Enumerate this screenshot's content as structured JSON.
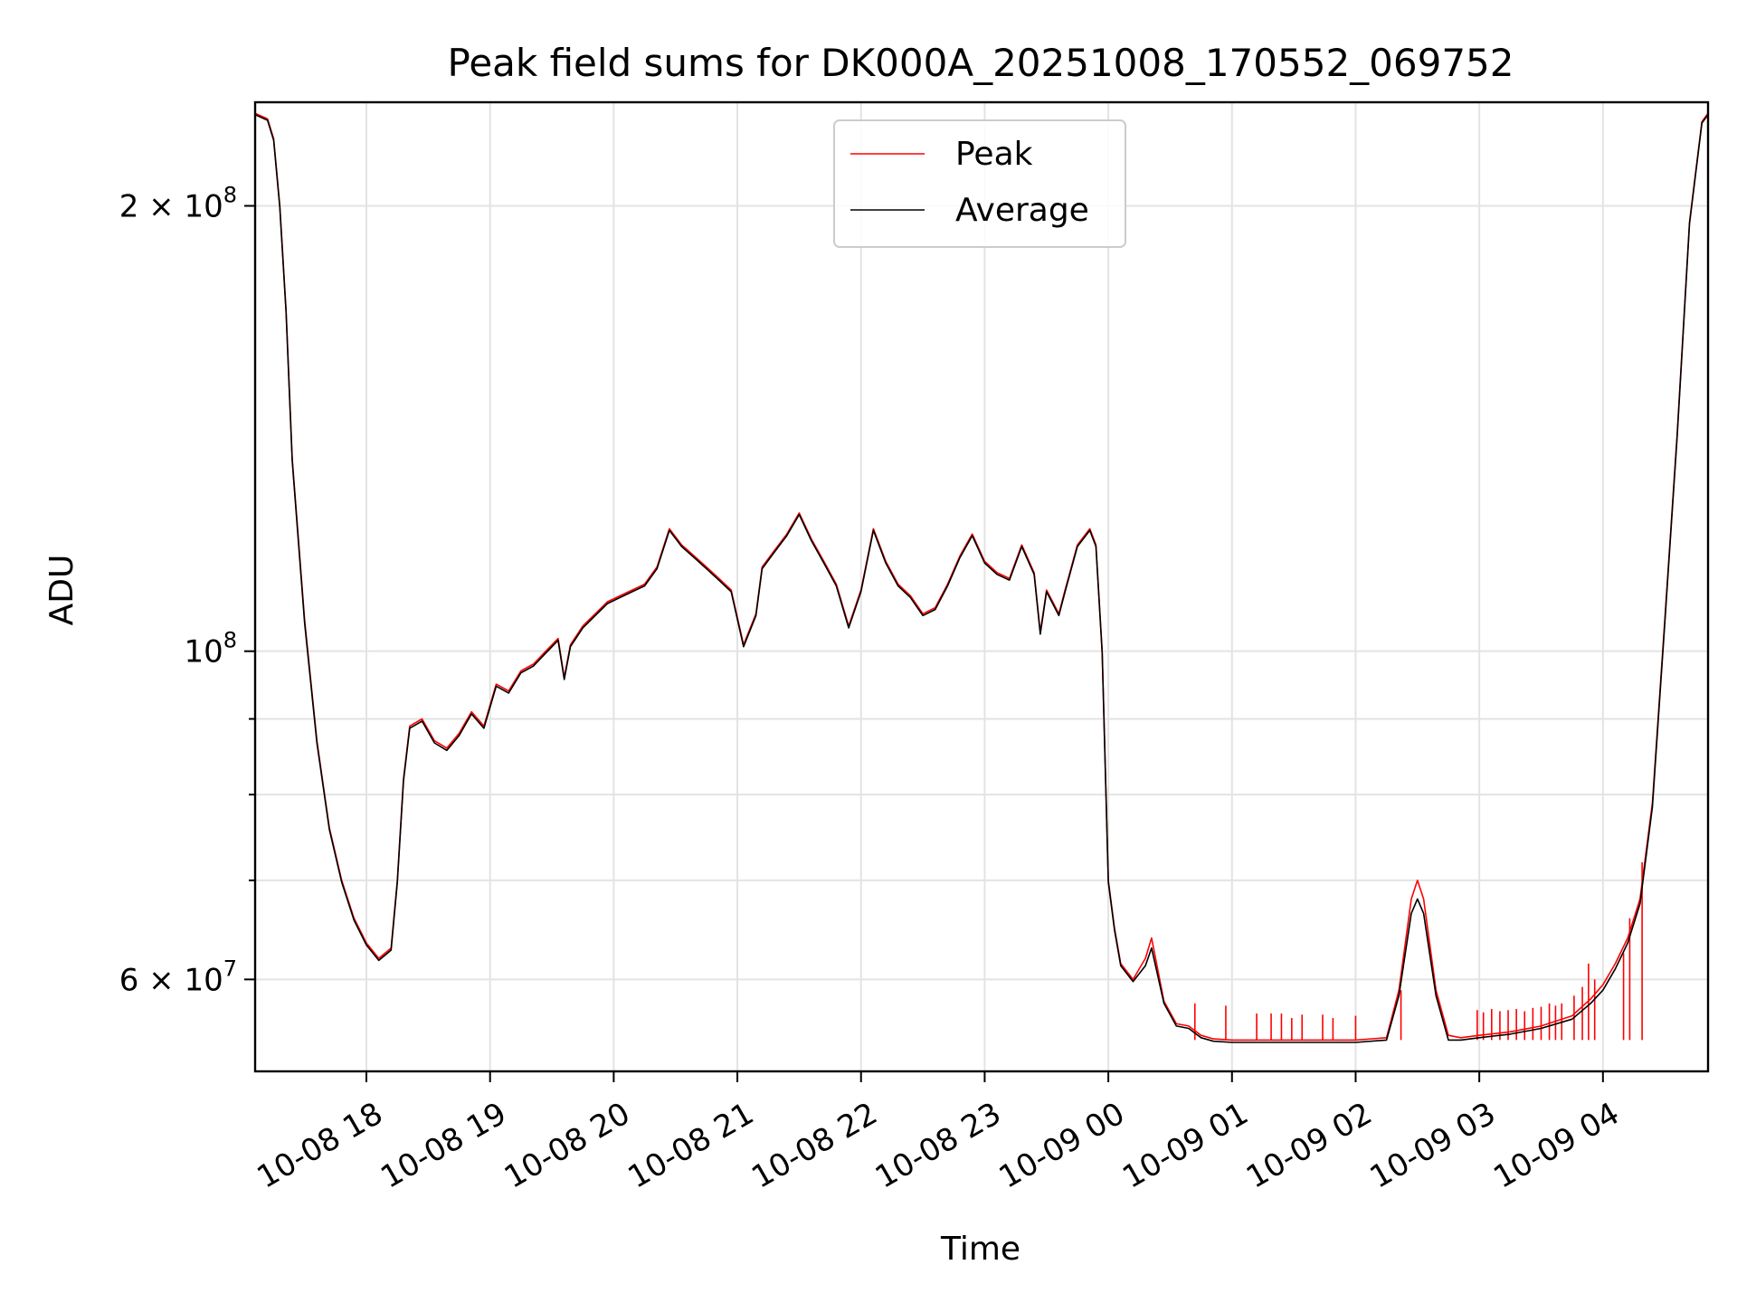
{
  "chart_data": {
    "type": "line",
    "title": "Peak field sums for DK000A_20251008_170552_069752",
    "xlabel": "Time",
    "ylabel": "ADU",
    "yscale": "log",
    "ylim": [
      52000000,
      235000000
    ],
    "xlim": [
      "2025-10-08 17:06",
      "2025-10-09 04:51"
    ],
    "grid": true,
    "legend_position": "upper center",
    "colors": {
      "peak": "#ff0000",
      "average": "#000000"
    },
    "x_ticks": [
      {
        "value": "2025-10-08 18:00",
        "label": "10-08 18"
      },
      {
        "value": "2025-10-08 19:00",
        "label": "10-08 19"
      },
      {
        "value": "2025-10-08 20:00",
        "label": "10-08 20"
      },
      {
        "value": "2025-10-08 21:00",
        "label": "10-08 21"
      },
      {
        "value": "2025-10-08 22:00",
        "label": "10-08 22"
      },
      {
        "value": "2025-10-08 23:00",
        "label": "10-08 23"
      },
      {
        "value": "2025-10-09 00:00",
        "label": "10-09 00"
      },
      {
        "value": "2025-10-09 01:00",
        "label": "10-09 01"
      },
      {
        "value": "2025-10-09 02:00",
        "label": "10-09 02"
      },
      {
        "value": "2025-10-09 03:00",
        "label": "10-09 03"
      },
      {
        "value": "2025-10-09 04:00",
        "label": "10-09 04"
      }
    ],
    "y_major_ticks": [
      {
        "value": 60000000,
        "mantissa": "6",
        "base": "10",
        "exp": "7"
      },
      {
        "value": 100000000,
        "mantissa": "",
        "base": "10",
        "exp": "8"
      },
      {
        "value": 200000000,
        "mantissa": "2",
        "base": "10",
        "exp": "8"
      }
    ],
    "y_minor_ticks": [
      70000000,
      80000000,
      90000000
    ],
    "series": [
      {
        "name": "Peak",
        "color": "#ff0000",
        "x": [
          "2025-10-08 17:06",
          "2025-10-08 17:12",
          "2025-10-08 17:15",
          "2025-10-08 17:18",
          "2025-10-08 17:21",
          "2025-10-08 17:24",
          "2025-10-08 17:30",
          "2025-10-08 17:36",
          "2025-10-08 17:42",
          "2025-10-08 17:48",
          "2025-10-08 17:54",
          "2025-10-08 18:00",
          "2025-10-08 18:06",
          "2025-10-08 18:12",
          "2025-10-08 18:15",
          "2025-10-08 18:18",
          "2025-10-08 18:21",
          "2025-10-08 18:27",
          "2025-10-08 18:33",
          "2025-10-08 18:39",
          "2025-10-08 18:45",
          "2025-10-08 18:51",
          "2025-10-08 18:57",
          "2025-10-08 19:03",
          "2025-10-08 19:09",
          "2025-10-08 19:15",
          "2025-10-08 19:21",
          "2025-10-08 19:27",
          "2025-10-08 19:33",
          "2025-10-08 19:36",
          "2025-10-08 19:39",
          "2025-10-08 19:45",
          "2025-10-08 19:51",
          "2025-10-08 19:57",
          "2025-10-08 20:03",
          "2025-10-08 20:09",
          "2025-10-08 20:15",
          "2025-10-08 20:21",
          "2025-10-08 20:27",
          "2025-10-08 20:33",
          "2025-10-08 20:39",
          "2025-10-08 20:45",
          "2025-10-08 20:51",
          "2025-10-08 20:57",
          "2025-10-08 21:03",
          "2025-10-08 21:09",
          "2025-10-08 21:12",
          "2025-10-08 21:18",
          "2025-10-08 21:24",
          "2025-10-08 21:30",
          "2025-10-08 21:36",
          "2025-10-08 21:42",
          "2025-10-08 21:48",
          "2025-10-08 21:54",
          "2025-10-08 22:00",
          "2025-10-08 22:06",
          "2025-10-08 22:12",
          "2025-10-08 22:18",
          "2025-10-08 22:24",
          "2025-10-08 22:30",
          "2025-10-08 22:36",
          "2025-10-08 22:42",
          "2025-10-08 22:48",
          "2025-10-08 22:54",
          "2025-10-08 23:00",
          "2025-10-08 23:06",
          "2025-10-08 23:12",
          "2025-10-08 23:18",
          "2025-10-08 23:24",
          "2025-10-08 23:27",
          "2025-10-08 23:30",
          "2025-10-08 23:36",
          "2025-10-08 23:39",
          "2025-10-08 23:45",
          "2025-10-08 23:51",
          "2025-10-08 23:54",
          "2025-10-08 23:57",
          "2025-10-09 00:00",
          "2025-10-09 00:03",
          "2025-10-09 00:06",
          "2025-10-09 00:12",
          "2025-10-09 00:18",
          "2025-10-09 00:21",
          "2025-10-09 00:27",
          "2025-10-09 00:33",
          "2025-10-09 00:39",
          "2025-10-09 00:45",
          "2025-10-09 00:51",
          "2025-10-09 01:00",
          "2025-10-09 01:15",
          "2025-10-09 01:30",
          "2025-10-09 01:45",
          "2025-10-09 02:00",
          "2025-10-09 02:15",
          "2025-10-09 02:21",
          "2025-10-09 02:27",
          "2025-10-09 02:30",
          "2025-10-09 02:33",
          "2025-10-09 02:39",
          "2025-10-09 02:45",
          "2025-10-09 02:51",
          "2025-10-09 03:00",
          "2025-10-09 03:15",
          "2025-10-09 03:30",
          "2025-10-09 03:45",
          "2025-10-09 03:54",
          "2025-10-09 04:00",
          "2025-10-09 04:06",
          "2025-10-09 04:12",
          "2025-10-09 04:18",
          "2025-10-09 04:24",
          "2025-10-09 04:30",
          "2025-10-09 04:36",
          "2025-10-09 04:42",
          "2025-10-09 04:48",
          "2025-10-09 04:51"
        ],
        "values": [
          231000000,
          229000000,
          222000000,
          200000000,
          170000000,
          135000000,
          105000000,
          87000000,
          76000000,
          70000000,
          66000000,
          63500000,
          62000000,
          63000000,
          70000000,
          82000000,
          89000000,
          90000000,
          87000000,
          86000000,
          88000000,
          91000000,
          89000000,
          95000000,
          94000000,
          97000000,
          98000000,
          100000000,
          102000000,
          96000000,
          101000000,
          104000000,
          106000000,
          108000000,
          109000000,
          110000000,
          111000000,
          114000000,
          121000000,
          118000000,
          116000000,
          114000000,
          112000000,
          110000000,
          101000000,
          106000000,
          114000000,
          117000000,
          120000000,
          124000000,
          119000000,
          115000000,
          111000000,
          104000000,
          110000000,
          121000000,
          115000000,
          111000000,
          109000000,
          106000000,
          107000000,
          111000000,
          116000000,
          120000000,
          115000000,
          113000000,
          112000000,
          118000000,
          113000000,
          103000000,
          110000000,
          106000000,
          110000000,
          118000000,
          121000000,
          118000000,
          100000000,
          70000000,
          65000000,
          61500000,
          60000000,
          62000000,
          64000000,
          58000000,
          56000000,
          55800000,
          55000000,
          54700000,
          54600000,
          54600000,
          54600000,
          54600000,
          54600000,
          54800000,
          59000000,
          68000000,
          70000000,
          68000000,
          59000000,
          55000000,
          54800000,
          55000000,
          55300000,
          55800000,
          56700000,
          58200000,
          59500000,
          61500000,
          64000000,
          68000000,
          79000000,
          105000000,
          140000000,
          195000000,
          228000000,
          231000000
        ],
        "spikes": [
          {
            "x": "2025-10-09 00:42",
            "value": 57800000
          },
          {
            "x": "2025-10-09 00:57",
            "value": 57600000
          },
          {
            "x": "2025-10-09 01:12",
            "value": 56900000
          },
          {
            "x": "2025-10-09 01:19",
            "value": 56900000
          },
          {
            "x": "2025-10-09 01:24",
            "value": 56900000
          },
          {
            "x": "2025-10-09 01:29",
            "value": 56500000
          },
          {
            "x": "2025-10-09 01:34",
            "value": 56800000
          },
          {
            "x": "2025-10-09 01:44",
            "value": 56800000
          },
          {
            "x": "2025-10-09 01:49",
            "value": 56500000
          },
          {
            "x": "2025-10-09 02:00",
            "value": 56700000
          },
          {
            "x": "2025-10-09 02:22",
            "value": 59000000
          },
          {
            "x": "2025-10-09 02:59",
            "value": 57200000
          },
          {
            "x": "2025-10-09 03:02",
            "value": 57000000
          },
          {
            "x": "2025-10-09 03:06",
            "value": 57300000
          },
          {
            "x": "2025-10-09 03:10",
            "value": 57100000
          },
          {
            "x": "2025-10-09 03:14",
            "value": 57200000
          },
          {
            "x": "2025-10-09 03:18",
            "value": 57300000
          },
          {
            "x": "2025-10-09 03:22",
            "value": 57100000
          },
          {
            "x": "2025-10-09 03:26",
            "value": 57400000
          },
          {
            "x": "2025-10-09 03:30",
            "value": 57500000
          },
          {
            "x": "2025-10-09 03:34",
            "value": 57800000
          },
          {
            "x": "2025-10-09 03:37",
            "value": 57600000
          },
          {
            "x": "2025-10-09 03:40",
            "value": 57800000
          },
          {
            "x": "2025-10-09 03:46",
            "value": 58500000
          },
          {
            "x": "2025-10-09 03:50",
            "value": 59300000
          },
          {
            "x": "2025-10-09 03:53",
            "value": 61500000
          },
          {
            "x": "2025-10-09 03:56",
            "value": 60000000
          },
          {
            "x": "2025-10-09 04:10",
            "value": 62500000
          },
          {
            "x": "2025-10-09 04:13",
            "value": 66000000
          },
          {
            "x": "2025-10-09 04:19",
            "value": 72000000
          }
        ]
      },
      {
        "name": "Average",
        "color": "#000000",
        "x": [
          "2025-10-08 17:06",
          "2025-10-08 17:12",
          "2025-10-08 17:15",
          "2025-10-08 17:18",
          "2025-10-08 17:21",
          "2025-10-08 17:24",
          "2025-10-08 17:30",
          "2025-10-08 17:36",
          "2025-10-08 17:42",
          "2025-10-08 17:48",
          "2025-10-08 17:54",
          "2025-10-08 18:00",
          "2025-10-08 18:06",
          "2025-10-08 18:12",
          "2025-10-08 18:15",
          "2025-10-08 18:18",
          "2025-10-08 18:21",
          "2025-10-08 18:27",
          "2025-10-08 18:33",
          "2025-10-08 18:39",
          "2025-10-08 18:45",
          "2025-10-08 18:51",
          "2025-10-08 18:57",
          "2025-10-08 19:03",
          "2025-10-08 19:09",
          "2025-10-08 19:15",
          "2025-10-08 19:21",
          "2025-10-08 19:27",
          "2025-10-08 19:33",
          "2025-10-08 19:36",
          "2025-10-08 19:39",
          "2025-10-08 19:45",
          "2025-10-08 19:51",
          "2025-10-08 19:57",
          "2025-10-08 20:03",
          "2025-10-08 20:09",
          "2025-10-08 20:15",
          "2025-10-08 20:21",
          "2025-10-08 20:27",
          "2025-10-08 20:33",
          "2025-10-08 20:39",
          "2025-10-08 20:45",
          "2025-10-08 20:51",
          "2025-10-08 20:57",
          "2025-10-08 21:03",
          "2025-10-08 21:09",
          "2025-10-08 21:12",
          "2025-10-08 21:18",
          "2025-10-08 21:24",
          "2025-10-08 21:30",
          "2025-10-08 21:36",
          "2025-10-08 21:42",
          "2025-10-08 21:48",
          "2025-10-08 21:54",
          "2025-10-08 22:00",
          "2025-10-08 22:06",
          "2025-10-08 22:12",
          "2025-10-08 22:18",
          "2025-10-08 22:24",
          "2025-10-08 22:30",
          "2025-10-08 22:36",
          "2025-10-08 22:42",
          "2025-10-08 22:48",
          "2025-10-08 22:54",
          "2025-10-08 23:00",
          "2025-10-08 23:06",
          "2025-10-08 23:12",
          "2025-10-08 23:18",
          "2025-10-08 23:24",
          "2025-10-08 23:27",
          "2025-10-08 23:30",
          "2025-10-08 23:36",
          "2025-10-08 23:39",
          "2025-10-08 23:45",
          "2025-10-08 23:51",
          "2025-10-08 23:54",
          "2025-10-08 23:57",
          "2025-10-09 00:00",
          "2025-10-09 00:03",
          "2025-10-09 00:06",
          "2025-10-09 00:12",
          "2025-10-09 00:18",
          "2025-10-09 00:21",
          "2025-10-09 00:27",
          "2025-10-09 00:33",
          "2025-10-09 00:39",
          "2025-10-09 00:45",
          "2025-10-09 00:51",
          "2025-10-09 01:00",
          "2025-10-09 01:15",
          "2025-10-09 01:30",
          "2025-10-09 01:45",
          "2025-10-09 02:00",
          "2025-10-09 02:15",
          "2025-10-09 02:21",
          "2025-10-09 02:27",
          "2025-10-09 02:30",
          "2025-10-09 02:33",
          "2025-10-09 02:39",
          "2025-10-09 02:45",
          "2025-10-09 02:51",
          "2025-10-09 03:00",
          "2025-10-09 03:15",
          "2025-10-09 03:30",
          "2025-10-09 03:45",
          "2025-10-09 03:54",
          "2025-10-09 04:00",
          "2025-10-09 04:06",
          "2025-10-09 04:12",
          "2025-10-09 04:18",
          "2025-10-09 04:24",
          "2025-10-09 04:30",
          "2025-10-09 04:36",
          "2025-10-09 04:42",
          "2025-10-09 04:48",
          "2025-10-09 04:51"
        ],
        "values": [
          230500000,
          228500000,
          221500000,
          199500000,
          169500000,
          134500000,
          104500000,
          86700000,
          75800000,
          69800000,
          65800000,
          63300000,
          61800000,
          62800000,
          69800000,
          81700000,
          88700000,
          89700000,
          86700000,
          85700000,
          87700000,
          90700000,
          88700000,
          94700000,
          93700000,
          96700000,
          97700000,
          99700000,
          101700000,
          95700000,
          100700000,
          103700000,
          105700000,
          107700000,
          108700000,
          109700000,
          110700000,
          113700000,
          120700000,
          117700000,
          115700000,
          113700000,
          111700000,
          109700000,
          100700000,
          105700000,
          113700000,
          116700000,
          119700000,
          123700000,
          118700000,
          114700000,
          110700000,
          103700000,
          109700000,
          120700000,
          114700000,
          110700000,
          108700000,
          105700000,
          106700000,
          110700000,
          115700000,
          119700000,
          114700000,
          112700000,
          111700000,
          117700000,
          112700000,
          102700000,
          109700000,
          105700000,
          109700000,
          117700000,
          120700000,
          117700000,
          99700000,
          69800000,
          64800000,
          61300000,
          59800000,
          61300000,
          63000000,
          57800000,
          55800000,
          55600000,
          54800000,
          54500000,
          54400000,
          54400000,
          54400000,
          54400000,
          54400000,
          54600000,
          58500000,
          66500000,
          68000000,
          66500000,
          58500000,
          54600000,
          54600000,
          54800000,
          55100000,
          55600000,
          56400000,
          57800000,
          59000000,
          61000000,
          63500000,
          67500000,
          78500000,
          104500000,
          139500000,
          194500000,
          227500000,
          230500000
        ]
      }
    ]
  }
}
